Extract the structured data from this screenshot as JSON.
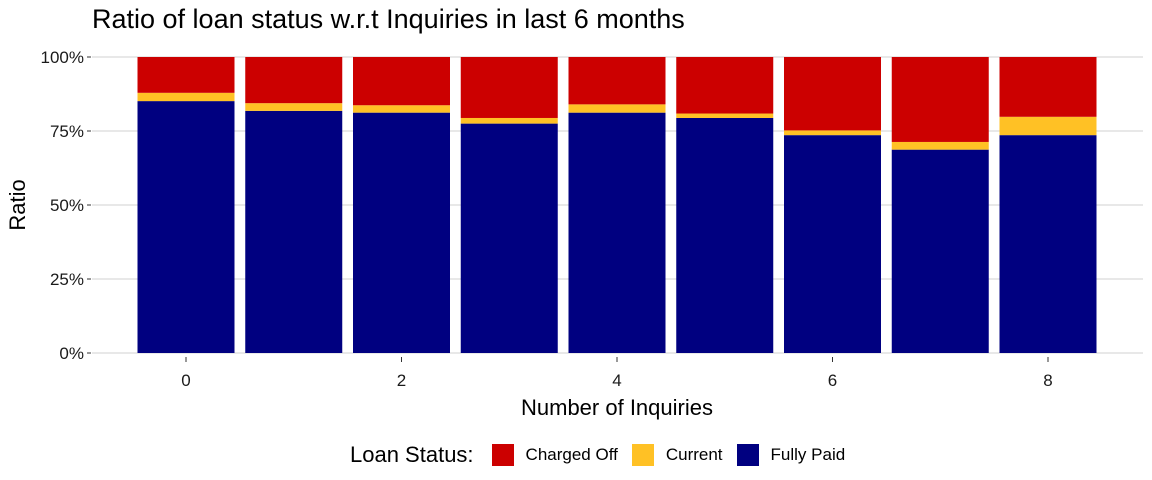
{
  "title": "Ratio of loan status w.r.t Inquiries in last 6 months",
  "legend": {
    "title": "Loan Status:",
    "items": [
      {
        "label": "Charged Off",
        "color": "#CC0000"
      },
      {
        "label": "Current",
        "color": "#FFC125"
      },
      {
        "label": "Fully Paid",
        "color": "#000080"
      }
    ]
  },
  "chart_data": {
    "type": "bar",
    "stacked": true,
    "title": "Ratio of loan status w.r.t Inquiries in last 6 months",
    "xlabel": "Number of Inquiries",
    "ylabel": "Ratio",
    "categories": [
      0,
      1,
      2,
      3,
      4,
      5,
      6,
      7,
      8
    ],
    "x_tick_labels": [
      "0",
      "2",
      "4",
      "6",
      "8"
    ],
    "y_tick_labels": [
      "0%",
      "25%",
      "50%",
      "75%",
      "100%"
    ],
    "ylim": [
      0,
      1
    ],
    "grid": true,
    "legend_position": "bottom",
    "series": [
      {
        "name": "Fully Paid",
        "color": "#000080",
        "values": [
          0.851,
          0.818,
          0.812,
          0.775,
          0.812,
          0.794,
          0.736,
          0.687,
          0.736
        ]
      },
      {
        "name": "Current",
        "color": "#FFC125",
        "values": [
          0.028,
          0.026,
          0.025,
          0.019,
          0.028,
          0.015,
          0.016,
          0.026,
          0.062
        ]
      },
      {
        "name": "Charged Off",
        "color": "#CC0000",
        "values": [
          0.121,
          0.156,
          0.163,
          0.206,
          0.16,
          0.191,
          0.248,
          0.287,
          0.202
        ]
      }
    ]
  }
}
